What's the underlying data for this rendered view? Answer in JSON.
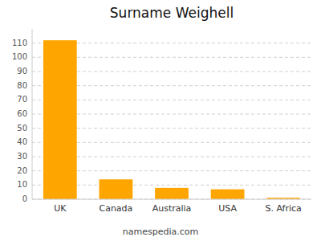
{
  "chart_data": {
    "type": "bar",
    "title": "Surname Weighell",
    "categories": [
      "UK",
      "Canada",
      "Australia",
      "USA",
      "S. Africa"
    ],
    "values": [
      112,
      14,
      8,
      7,
      1
    ],
    "color": "#FFA500",
    "ylim": [
      0,
      120
    ],
    "yticks": [
      0,
      10,
      20,
      30,
      40,
      50,
      60,
      70,
      80,
      90,
      100,
      110
    ],
    "grid": true,
    "annotations": [
      "namespedia.com"
    ]
  }
}
